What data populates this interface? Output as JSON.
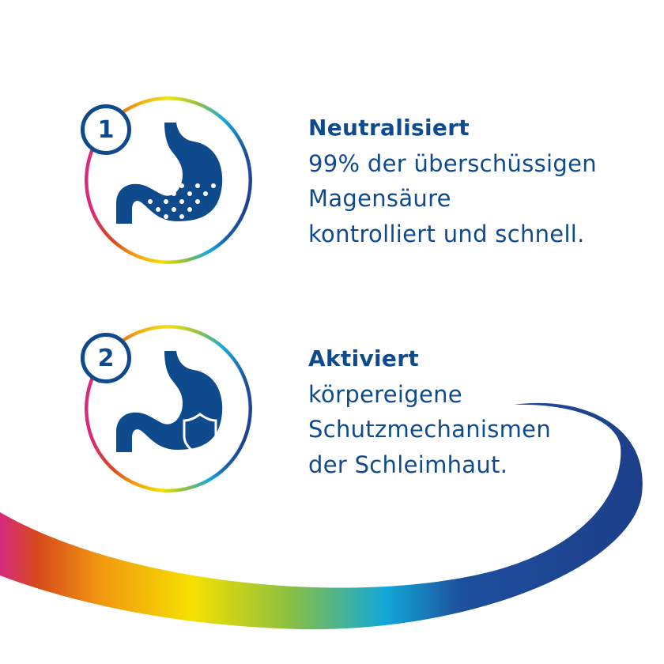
{
  "colors": {
    "brand_blue": "#0f4a8c",
    "rainbow": [
      "#d62a7c",
      "#d64a1c",
      "#f29a10",
      "#f5e000",
      "#8cc040",
      "#12a8d8",
      "#1d3f8a"
    ]
  },
  "items": [
    {
      "number": "1",
      "icon": "stomach-acid-icon",
      "title": "Neutralisiert",
      "lines": [
        "99% der überschüssigen",
        "Magensäure",
        "kontrolliert und schnell."
      ]
    },
    {
      "number": "2",
      "icon": "stomach-shield-icon",
      "title": "Aktiviert",
      "lines": [
        "körpereigene",
        "Schutzmechanismen",
        "der Schleimhaut."
      ]
    }
  ]
}
